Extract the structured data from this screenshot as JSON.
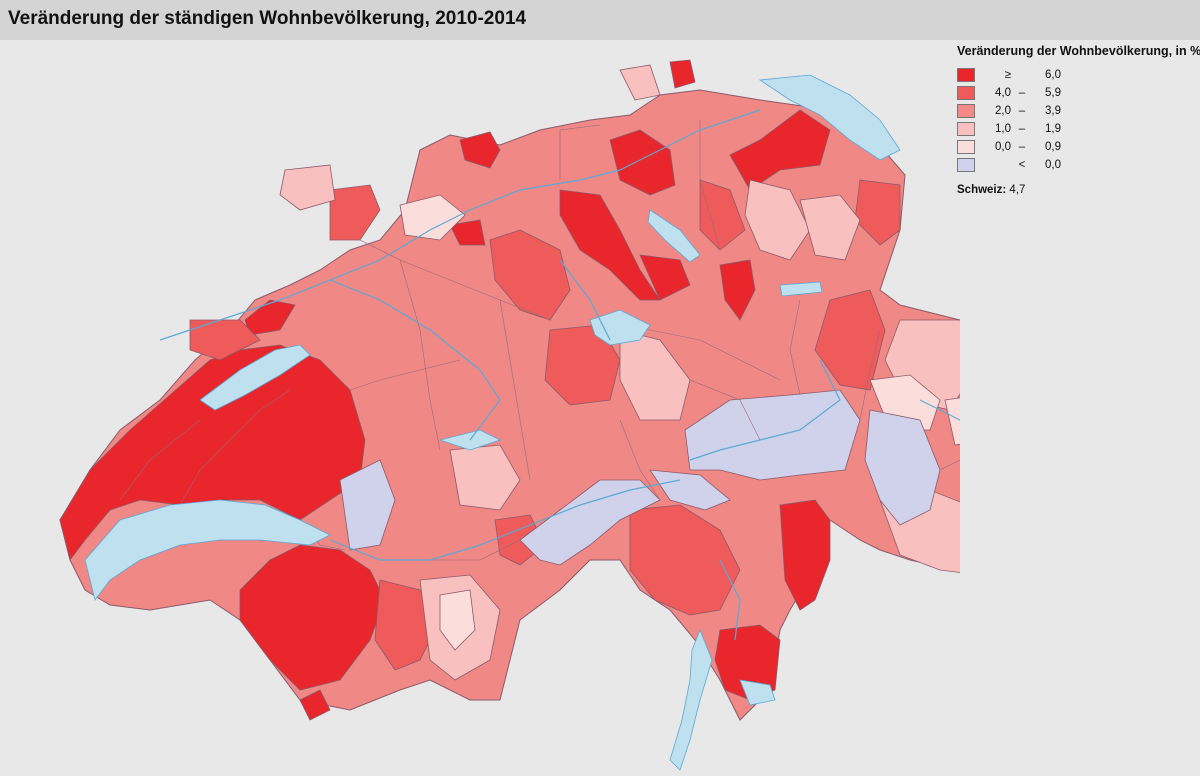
{
  "title": "Veränderung der ständigen Wohnbevölkerung, 2010-2014",
  "legend": {
    "title": "Veränderung der Wohnbevölkerung, in %",
    "classes": [
      {
        "lo": "≥",
        "sep": "",
        "hi": "6,0",
        "color": "#e8262b"
      },
      {
        "lo": "4,0",
        "sep": "–",
        "hi": "5,9",
        "color": "#ef5a5a"
      },
      {
        "lo": "2,0",
        "sep": "–",
        "hi": "3,9",
        "color": "#f38a88"
      },
      {
        "lo": "1,0",
        "sep": "–",
        "hi": "1,9",
        "color": "#f8c0be"
      },
      {
        "lo": "0,0",
        "sep": "–",
        "hi": "0,9",
        "color": "#fbdedc"
      },
      {
        "lo": "",
        "sep": "<",
        "hi": "0,0",
        "color": "#cfd2ea"
      }
    ],
    "country_label": "Schweiz:",
    "country_value": "4,7"
  },
  "colors": {
    "lake": "#bfe0ef",
    "river": "#5aa9d6",
    "border": "#8a5a6a",
    "background": "#e8e8e8"
  }
}
